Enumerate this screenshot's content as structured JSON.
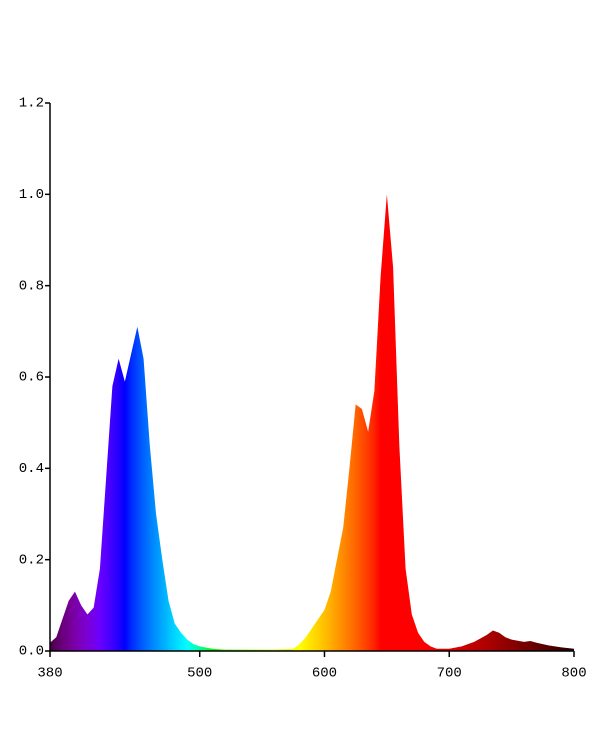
{
  "chart_data": {
    "type": "area",
    "x": [
      380,
      385,
      390,
      395,
      400,
      405,
      410,
      415,
      420,
      425,
      430,
      435,
      440,
      445,
      450,
      455,
      460,
      465,
      470,
      475,
      480,
      485,
      490,
      495,
      500,
      510,
      520,
      530,
      540,
      550,
      560,
      570,
      575,
      580,
      585,
      590,
      595,
      600,
      605,
      610,
      615,
      620,
      625,
      630,
      635,
      640,
      645,
      650,
      655,
      660,
      665,
      670,
      675,
      680,
      685,
      690,
      700,
      710,
      720,
      730,
      735,
      740,
      745,
      750,
      760,
      765,
      770,
      780,
      790,
      800
    ],
    "values": [
      0.018,
      0.03,
      0.07,
      0.11,
      0.13,
      0.1,
      0.08,
      0.095,
      0.18,
      0.38,
      0.58,
      0.64,
      0.59,
      0.65,
      0.71,
      0.64,
      0.45,
      0.3,
      0.2,
      0.11,
      0.06,
      0.04,
      0.025,
      0.015,
      0.01,
      0.005,
      0.003,
      0.003,
      0.003,
      0.003,
      0.003,
      0.004,
      0.005,
      0.015,
      0.03,
      0.05,
      0.07,
      0.09,
      0.13,
      0.2,
      0.27,
      0.4,
      0.54,
      0.53,
      0.48,
      0.57,
      0.82,
      1.0,
      0.84,
      0.45,
      0.18,
      0.08,
      0.04,
      0.02,
      0.01,
      0.005,
      0.005,
      0.01,
      0.02,
      0.035,
      0.045,
      0.04,
      0.03,
      0.025,
      0.02,
      0.022,
      0.018,
      0.012,
      0.008,
      0.005
    ],
    "xlim": [
      380,
      800
    ],
    "xticks": [
      380,
      500,
      600,
      700,
      800
    ],
    "ylim": [
      0,
      1.2
    ],
    "yticks": [
      {
        "value": 0,
        "label": "0.0"
      },
      0.2,
      0.4,
      0.6,
      0.8,
      {
        "value": 1,
        "label": "1.0"
      },
      1.2
    ],
    "fill": "spectrum"
  }
}
